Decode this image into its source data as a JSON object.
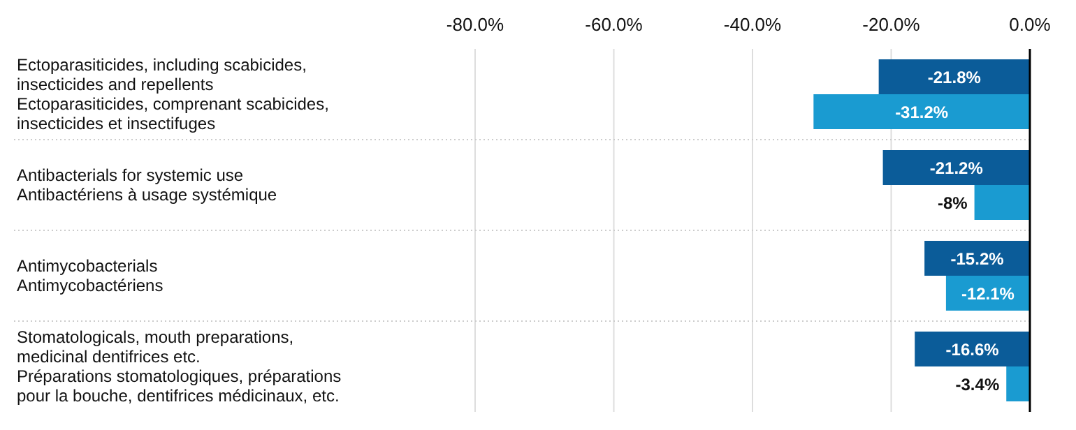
{
  "chart_data": {
    "type": "bar",
    "orientation": "horizontal",
    "categories": [
      "Ectoparasiticides, including scabicides,\ninsecticides and repellents\nEctoparasiticides, comprenant scabicides,\ninsecticides et insectifuges",
      "Antibacterials for systemic use\nAntibactériens à usage systémique",
      "Antimycobacterials\nAntimycobactériens",
      "Stomatologicals, mouth preparations,\nmedicinal dentifrices etc.\nPréparations stomatologiques, préparations\npour la bouche, dentifrices médicinaux, etc."
    ],
    "series": [
      {
        "color": "#0b5c99",
        "values": [
          -21.8,
          -21.2,
          -15.2,
          -16.6
        ],
        "value_labels": [
          "-21.8%",
          "-21.2%",
          "-15.2%",
          "-16.6%"
        ]
      },
      {
        "color": "#1a9bd1",
        "values": [
          -31.2,
          -8,
          -12.1,
          -3.4
        ],
        "value_labels": [
          "-31.2%",
          "-8%",
          "-12.1%",
          "-3.4%"
        ]
      }
    ],
    "xlim": [
      -80,
      0
    ],
    "xticks": [
      {
        "value": -80,
        "label": "-80.0%"
      },
      {
        "value": -60,
        "label": "-60.0%"
      },
      {
        "value": -40,
        "label": "-40.0%"
      },
      {
        "value": -20,
        "label": "-20.0%"
      },
      {
        "value": 0,
        "label": "0.0%"
      }
    ],
    "grid": "x"
  }
}
